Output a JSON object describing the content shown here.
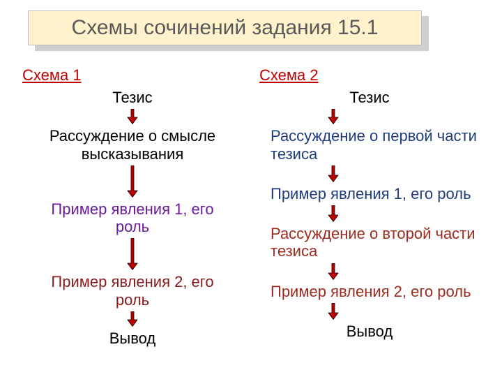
{
  "title": "Схемы сочинений задания 15.1",
  "title_box": {
    "bg": "#fff2cc",
    "border": "#bfbfbf",
    "shadow": "#d0cfcf",
    "text_color": "#595959",
    "font_size": 30
  },
  "background_color": "#ffffff",
  "arrow": {
    "fill": "#c00000",
    "stroke": "#000000",
    "stroke_width": 0.8
  },
  "colors": {
    "red_link": "#c00000",
    "black": "#000000",
    "purple": "#6a1b9a",
    "dark_red": "#8b1a1a",
    "navy": "#1f3c7b",
    "brown_red": "#9c2b1f"
  },
  "font_size_body": 22,
  "columns": [
    {
      "id": "schema1",
      "head": {
        "text": "Схема 1",
        "color": "#c00000"
      },
      "items": [
        {
          "type": "node",
          "text": "Тезис",
          "color": "#000000",
          "align": "center"
        },
        {
          "type": "arrow",
          "len": 22
        },
        {
          "type": "node",
          "text": "Рассуждение о смысле\nвысказывания",
          "color": "#000000",
          "align": "center"
        },
        {
          "type": "arrow",
          "len": 46
        },
        {
          "type": "node",
          "text": "Пример явления 1, его\nроль",
          "color": "#6a1b9a",
          "align": "center"
        },
        {
          "type": "arrow",
          "len": 46
        },
        {
          "type": "node",
          "text": "Пример явления 2, его\nроль",
          "color": "#8b1a1a",
          "align": "center"
        },
        {
          "type": "arrow",
          "len": 22
        },
        {
          "type": "node",
          "text": "Вывод",
          "color": "#000000",
          "align": "center"
        }
      ]
    },
    {
      "id": "schema2",
      "head": {
        "text": "Схема 2",
        "color": "#c00000"
      },
      "items": [
        {
          "type": "node",
          "text": "Тезис",
          "color": "#000000",
          "align": "center"
        },
        {
          "type": "arrow",
          "len": 22
        },
        {
          "type": "node",
          "text": "Рассуждение о первой части\n  тезиса",
          "color": "#1f3c7b",
          "align": "left"
        },
        {
          "type": "arrow",
          "len": 24
        },
        {
          "type": "node",
          "text": "Пример явления 1, его роль",
          "color": "#1f3c7b",
          "align": "left"
        },
        {
          "type": "arrow",
          "len": 24
        },
        {
          "type": "node",
          "text": "Рассуждение о второй части\n  тезиса",
          "color": "#9c2b1f",
          "align": "left"
        },
        {
          "type": "arrow",
          "len": 24
        },
        {
          "type": "node",
          "text": "Пример явления 2, его роль",
          "color": "#9c2b1f",
          "align": "left"
        },
        {
          "type": "arrow",
          "len": 24
        },
        {
          "type": "node",
          "text": "Вывод",
          "color": "#000000",
          "align": "center"
        }
      ]
    }
  ]
}
